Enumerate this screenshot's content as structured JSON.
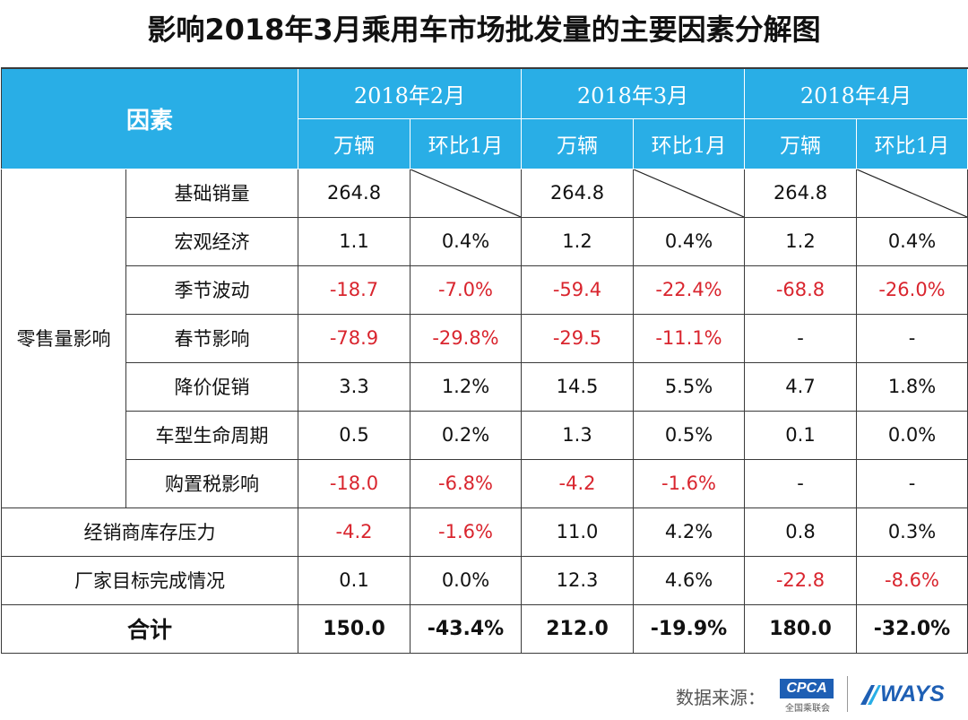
{
  "title": "影响2018年3月乘用车市场批发量的主要因素分解图",
  "header": {
    "factor_label": "因素",
    "months": [
      "2018年2月",
      "2018年3月",
      "2018年4月"
    ],
    "unit_label": "万辆",
    "mom_label": "环比1月"
  },
  "group_label": "零售量影响",
  "retail_rows": [
    {
      "factor": "基础销量",
      "feb": "264.8",
      "feb_mom": "",
      "mar": "264.8",
      "mar_mom": "",
      "apr": "264.8",
      "apr_mom": ""
    },
    {
      "factor": "宏观经济",
      "feb": "1.1",
      "feb_mom": "0.4%",
      "mar": "1.2",
      "mar_mom": "0.4%",
      "apr": "1.2",
      "apr_mom": "0.4%"
    },
    {
      "factor": "季节波动",
      "feb": "-18.7",
      "feb_mom": "-7.0%",
      "mar": "-59.4",
      "mar_mom": "-22.4%",
      "apr": "-68.8",
      "apr_mom": "-26.0%"
    },
    {
      "factor": "春节影响",
      "feb": "-78.9",
      "feb_mom": "-29.8%",
      "mar": "-29.5",
      "mar_mom": "-11.1%",
      "apr": "-",
      "apr_mom": "-"
    },
    {
      "factor": "降价促销",
      "feb": "3.3",
      "feb_mom": "1.2%",
      "mar": "14.5",
      "mar_mom": "5.5%",
      "apr": "4.7",
      "apr_mom": "1.8%"
    },
    {
      "factor": "车型生命周期",
      "feb": "0.5",
      "feb_mom": "0.2%",
      "mar": "1.3",
      "mar_mom": "0.5%",
      "apr": "0.1",
      "apr_mom": "0.0%"
    },
    {
      "factor": "购置税影响",
      "feb": "-18.0",
      "feb_mom": "-6.8%",
      "mar": "-4.2",
      "mar_mom": "-1.6%",
      "apr": "-",
      "apr_mom": "-"
    }
  ],
  "other_rows": [
    {
      "factor": "经销商库存压力",
      "feb": "-4.2",
      "feb_mom": "-1.6%",
      "mar": "11.0",
      "mar_mom": "4.2%",
      "apr": "0.8",
      "apr_mom": "0.3%"
    },
    {
      "factor": "厂家目标完成情况",
      "feb": "0.1",
      "feb_mom": "0.0%",
      "mar": "12.3",
      "mar_mom": "4.6%",
      "apr": "-22.8",
      "apr_mom": "-8.6%"
    }
  ],
  "total": {
    "label": "合计",
    "feb": "150.0",
    "feb_mom": "-43.4%",
    "mar": "212.0",
    "mar_mom": "-19.9%",
    "apr": "180.0",
    "apr_mom": "-32.0%"
  },
  "footer": {
    "source_label": "数据来源：",
    "cpca_logo": "CPCA",
    "cpca_sub": "全国乘联会",
    "ways_logo": "WAYS"
  },
  "colors": {
    "header_bg": "#29aee6",
    "negative": "#d9252e",
    "brand_blue": "#1e5fb4"
  }
}
